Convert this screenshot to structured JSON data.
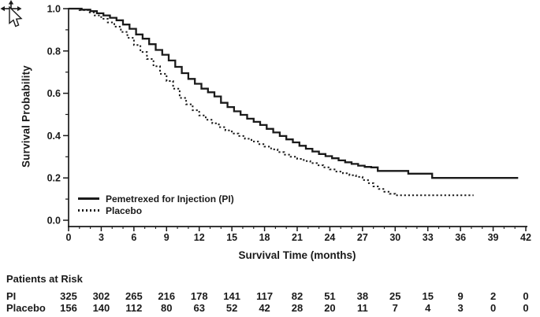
{
  "chart_data": {
    "type": "line",
    "subtype": "kaplan-meier-step",
    "title": "",
    "xlabel": "Survival Time (months)",
    "ylabel": "Survival Probability",
    "xlim": [
      0,
      42
    ],
    "ylim": [
      0.0,
      1.0
    ],
    "grid": "off",
    "legend_position": "inside-bottom-left",
    "x_tick_labels": [
      "0",
      "3",
      "6",
      "9",
      "12",
      "15",
      "18",
      "21",
      "24",
      "27",
      "30",
      "33",
      "36",
      "39",
      "42"
    ],
    "x_major_ticks": [
      0,
      3,
      6,
      9,
      12,
      15,
      18,
      21,
      24,
      27,
      30,
      33,
      36,
      39,
      42
    ],
    "x_minor_tick_interval": 1,
    "y_tick_labels": [
      "1.0",
      "0.8",
      "0.6",
      "0.4",
      "0.2",
      "0.0"
    ],
    "y_major_ticks": [
      1.0,
      0.8,
      0.6,
      0.4,
      0.2,
      0.0
    ],
    "y_minor_tick_interval": 0.1,
    "series": [
      {
        "name": "Pemetrexed for Injection (PI)",
        "line_style": "solid",
        "color": "#1a1a1a",
        "points": [
          [
            0,
            1.0
          ],
          [
            1.2,
            0.995
          ],
          [
            2,
            0.988
          ],
          [
            2.6,
            0.978
          ],
          [
            3.2,
            0.968
          ],
          [
            3.8,
            0.957
          ],
          [
            4.4,
            0.945
          ],
          [
            5,
            0.925
          ],
          [
            5.6,
            0.905
          ],
          [
            6.2,
            0.878
          ],
          [
            6.8,
            0.858
          ],
          [
            7.4,
            0.832
          ],
          [
            8,
            0.805
          ],
          [
            8.6,
            0.782
          ],
          [
            9.2,
            0.755
          ],
          [
            9.8,
            0.725
          ],
          [
            10.4,
            0.695
          ],
          [
            11,
            0.668
          ],
          [
            11.6,
            0.645
          ],
          [
            12.2,
            0.622
          ],
          [
            12.8,
            0.605
          ],
          [
            13.4,
            0.585
          ],
          [
            14,
            0.555
          ],
          [
            14.6,
            0.535
          ],
          [
            15.2,
            0.515
          ],
          [
            15.8,
            0.498
          ],
          [
            16.4,
            0.48
          ],
          [
            17,
            0.465
          ],
          [
            17.6,
            0.45
          ],
          [
            18.2,
            0.432
          ],
          [
            18.8,
            0.415
          ],
          [
            19.4,
            0.398
          ],
          [
            20,
            0.382
          ],
          [
            20.6,
            0.368
          ],
          [
            21.2,
            0.352
          ],
          [
            21.8,
            0.338
          ],
          [
            22.4,
            0.325
          ],
          [
            23,
            0.313
          ],
          [
            23.6,
            0.303
          ],
          [
            24.2,
            0.293
          ],
          [
            24.8,
            0.283
          ],
          [
            25.4,
            0.274
          ],
          [
            26,
            0.266
          ],
          [
            26.6,
            0.258
          ],
          [
            27.2,
            0.252
          ],
          [
            27.8,
            0.25
          ],
          [
            28.4,
            0.233
          ],
          [
            31.2,
            0.22
          ],
          [
            33.4,
            0.2
          ],
          [
            41.3,
            0.2
          ]
        ]
      },
      {
        "name": "Placebo",
        "line_style": "dotted",
        "color": "#1a1a1a",
        "points": [
          [
            0,
            1.0
          ],
          [
            1,
            0.993
          ],
          [
            1.8,
            0.982
          ],
          [
            2.4,
            0.968
          ],
          [
            3,
            0.952
          ],
          [
            3.6,
            0.935
          ],
          [
            4.2,
            0.915
          ],
          [
            4.8,
            0.89
          ],
          [
            5.4,
            0.862
          ],
          [
            6,
            0.828
          ],
          [
            6.6,
            0.795
          ],
          [
            7.2,
            0.762
          ],
          [
            7.8,
            0.728
          ],
          [
            8.4,
            0.692
          ],
          [
            9,
            0.658
          ],
          [
            9.6,
            0.622
          ],
          [
            10.2,
            0.578
          ],
          [
            10.8,
            0.548
          ],
          [
            11.4,
            0.52
          ],
          [
            12,
            0.495
          ],
          [
            12.6,
            0.475
          ],
          [
            13.2,
            0.458
          ],
          [
            13.8,
            0.44
          ],
          [
            14.4,
            0.425
          ],
          [
            15,
            0.41
          ],
          [
            15.6,
            0.398
          ],
          [
            16.2,
            0.385
          ],
          [
            16.8,
            0.372
          ],
          [
            17.4,
            0.36
          ],
          [
            18,
            0.348
          ],
          [
            18.6,
            0.335
          ],
          [
            19.2,
            0.322
          ],
          [
            19.8,
            0.31
          ],
          [
            20.4,
            0.3
          ],
          [
            21,
            0.29
          ],
          [
            21.6,
            0.28
          ],
          [
            22.2,
            0.27
          ],
          [
            22.8,
            0.26
          ],
          [
            23.4,
            0.25
          ],
          [
            24,
            0.24
          ],
          [
            24.6,
            0.23
          ],
          [
            25.2,
            0.222
          ],
          [
            25.8,
            0.213
          ],
          [
            26.4,
            0.205
          ],
          [
            27,
            0.19
          ],
          [
            27.5,
            0.175
          ],
          [
            28,
            0.16
          ],
          [
            28.5,
            0.148
          ],
          [
            29,
            0.135
          ],
          [
            29.5,
            0.125
          ],
          [
            30,
            0.118
          ],
          [
            37.2,
            0.118
          ]
        ]
      }
    ]
  },
  "legend": {
    "items": [
      {
        "label": "Pemetrexed for Injection (PI)",
        "style": "solid"
      },
      {
        "label": "Placebo",
        "style": "dotted"
      }
    ]
  },
  "risk_table": {
    "title": "Patients at Risk",
    "time_points": [
      0,
      3,
      6,
      9,
      12,
      15,
      18,
      21,
      24,
      27,
      30,
      33,
      36,
      39,
      42
    ],
    "rows": [
      {
        "label": "PI",
        "values": [
          325,
          302,
          265,
          216,
          178,
          141,
          117,
          82,
          51,
          38,
          25,
          15,
          9,
          2,
          0
        ]
      },
      {
        "label": "Placebo",
        "values": [
          156,
          140,
          112,
          80,
          63,
          52,
          42,
          28,
          20,
          11,
          7,
          4,
          3,
          0,
          0
        ]
      }
    ]
  },
  "icons": {
    "move_cursor": "move-4-way-arrows",
    "pointer_cursor": "arrow-pointer"
  },
  "colors": {
    "axis": "#1a1a1a",
    "text": "#1a1a1a",
    "background": "#ffffff"
  }
}
